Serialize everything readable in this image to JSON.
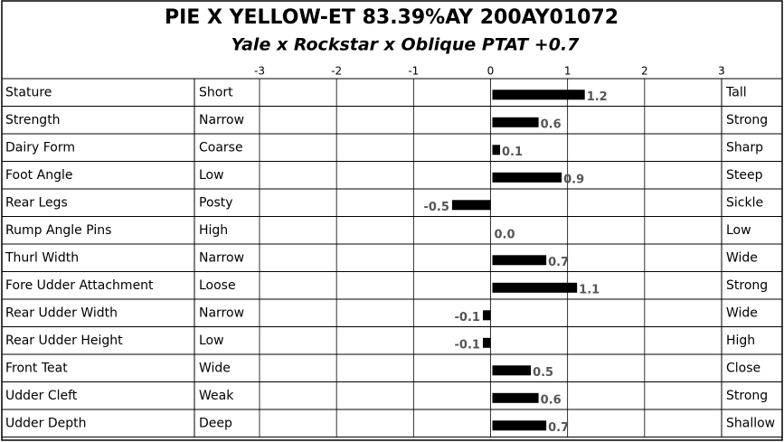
{
  "chart_data": {
    "type": "bar",
    "orientation": "horizontal",
    "title": "PIE X YELLOW-ET  83.39%AY  200AY01072",
    "subtitle": "Yale x Rockstar x Oblique     PTAT +0.7",
    "categories": [
      "Stature",
      "Strength",
      "Dairy Form",
      "Foot Angle",
      "Rear Legs",
      "Rump Angle Pins",
      "Thurl Width",
      "Fore Udder Attachment",
      "Rear Udder Width",
      "Rear Udder Height",
      "Front Teat",
      "Udder Cleft",
      "Udder Depth"
    ],
    "low_labels": [
      "Short",
      "Narrow",
      "Coarse",
      "Low",
      "Posty",
      "High",
      "Narrow",
      "Loose",
      "Narrow",
      "Low",
      "Wide",
      "Weak",
      "Deep"
    ],
    "high_labels": [
      "Tall",
      "Strong",
      "Sharp",
      "Steep",
      "Sickle",
      "Low",
      "Wide",
      "Strong",
      "Wide",
      "High",
      "Close",
      "Strong",
      "Shallow"
    ],
    "values": [
      1.2,
      0.6,
      0.1,
      0.9,
      -0.5,
      0.0,
      0.7,
      1.1,
      -0.1,
      -0.1,
      0.5,
      0.6,
      0.7
    ],
    "value_labels": [
      "1.2",
      "0.6",
      "0.1",
      "0.9",
      "-0.5",
      "0.0",
      "0.7",
      "1.1",
      "-0.1",
      "-0.1",
      "0.5",
      "0.6",
      "0.7"
    ],
    "xlim": [
      -3,
      3
    ],
    "xticks": [
      -3,
      -2,
      -1,
      0,
      1,
      2,
      3
    ],
    "color": "#000000",
    "grid": true
  }
}
